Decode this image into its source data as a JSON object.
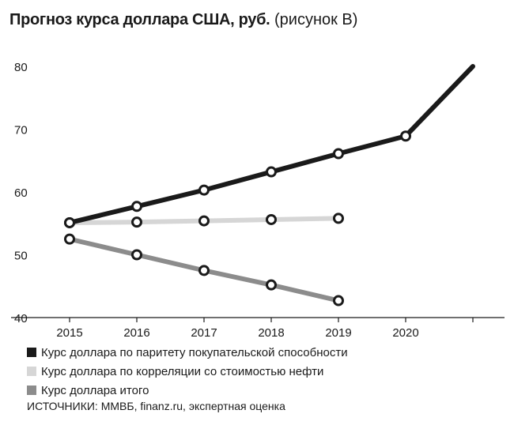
{
  "header": {
    "title_main": "Прогноз курса доллара США, руб.",
    "title_sub": "(рисунок В)"
  },
  "chart_data": {
    "type": "line",
    "x": [
      "2015",
      "2016",
      "2017",
      "2018",
      "2019",
      "2020",
      "2021"
    ],
    "x_tick_labels": [
      "2015",
      "2016",
      "2017",
      "2018",
      "2019",
      "2020",
      ""
    ],
    "y_ticks": [
      40,
      50,
      60,
      70,
      80
    ],
    "ylim": [
      40,
      80
    ],
    "series": [
      {
        "name": "Курс доллара по паритету покупательской способности",
        "color": "#1a1a1a",
        "values": [
          55.1,
          57.7,
          60.3,
          63.2,
          66.1,
          68.9,
          80.0
        ],
        "markers": [
          true,
          true,
          true,
          true,
          true,
          true,
          false
        ]
      },
      {
        "name": "Курс доллара по корреляции со стоимостью нефти",
        "color": "#d6d6d6",
        "values": [
          55.1,
          55.2,
          55.4,
          55.6,
          55.8,
          null,
          null
        ],
        "markers": [
          true,
          true,
          true,
          true,
          true,
          false,
          false
        ]
      },
      {
        "name": "Курс доллара итого",
        "color": "#8c8c8c",
        "values": [
          52.5,
          50.0,
          47.5,
          45.2,
          42.7,
          null,
          null
        ],
        "markers": [
          true,
          true,
          true,
          true,
          true,
          false,
          false
        ]
      }
    ]
  },
  "source": "ИСТОЧНИКИ: ММВБ, finanz.ru, экспертная оценка"
}
